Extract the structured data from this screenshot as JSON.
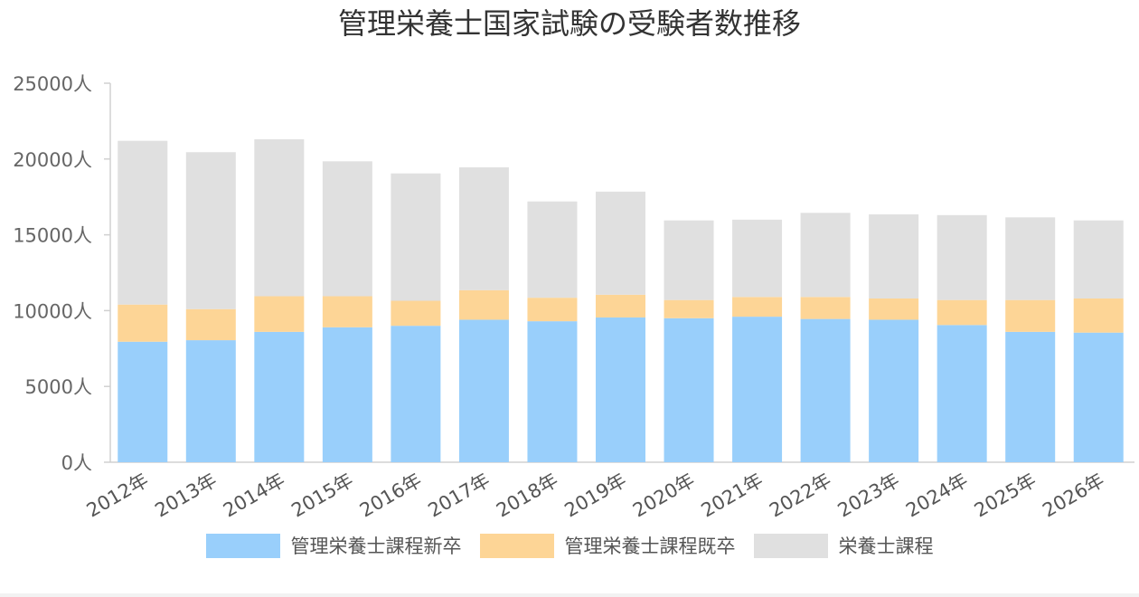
{
  "chart_data": {
    "type": "bar",
    "stacked": true,
    "title": "管理栄養士国家試験の受験者数推移",
    "categories": [
      "2012年",
      "2013年",
      "2014年",
      "2015年",
      "2016年",
      "2017年",
      "2018年",
      "2019年",
      "2020年",
      "2021年",
      "2022年",
      "2023年",
      "2024年",
      "2025年",
      "2026年"
    ],
    "series": [
      {
        "name": "管理栄養士課程新卒",
        "color": "#99cffb",
        "values": [
          7950,
          8050,
          8600,
          8900,
          9000,
          9400,
          9300,
          9550,
          9500,
          9600,
          9450,
          9400,
          9050,
          8600,
          8550
        ]
      },
      {
        "name": "管理栄養士課程既卒",
        "color": "#fdd596",
        "values": [
          2450,
          2050,
          2350,
          2050,
          1650,
          1950,
          1550,
          1500,
          1200,
          1300,
          1450,
          1400,
          1650,
          2100,
          2250
        ]
      },
      {
        "name": "栄養士課程",
        "color": "#e0e0e0",
        "values": [
          10800,
          10350,
          10350,
          8900,
          8400,
          8100,
          6350,
          6800,
          5250,
          5100,
          5550,
          5550,
          5600,
          5450,
          5150
        ]
      }
    ],
    "ylim": [
      0,
      25000
    ],
    "yticks": [
      0,
      5000,
      10000,
      15000,
      20000,
      25000
    ],
    "ytick_labels": [
      "0人",
      "5000人",
      "10000人",
      "15000人",
      "20000人",
      "25000人"
    ],
    "grid": false,
    "legend_position": "bottom"
  }
}
